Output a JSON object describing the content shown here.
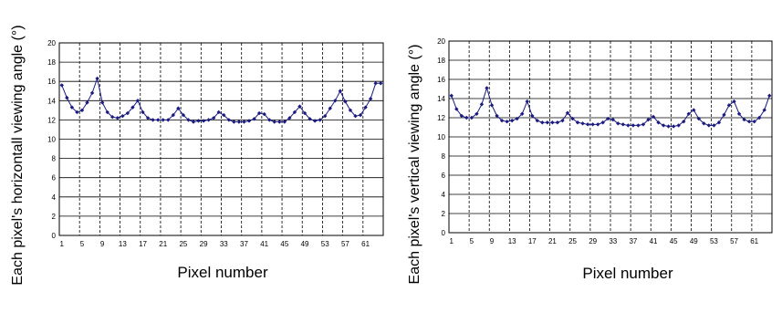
{
  "colors": {
    "series": "#1a1a80",
    "grid": "#000000",
    "background": "#ffffff"
  },
  "chart_data": [
    {
      "type": "line",
      "title": "",
      "xlabel": "Pixel number",
      "ylabel": "Each pixel's horizontall viewing angle (°)",
      "ylim": [
        0,
        20
      ],
      "xlim": [
        1,
        64
      ],
      "x_ticks": [
        "1",
        "5",
        "9",
        "13",
        "17",
        "21",
        "25",
        "29",
        "33",
        "37",
        "41",
        "45",
        "49",
        "53",
        "57",
        "61"
      ],
      "y_ticks": [
        "0",
        "2",
        "4",
        "6",
        "8",
        "10",
        "12",
        "14",
        "16",
        "18",
        "20"
      ],
      "grid": true,
      "series": [
        {
          "x": [
            1,
            2,
            3,
            4,
            5,
            6,
            7,
            8,
            9,
            10,
            11,
            12,
            13,
            14,
            15,
            16,
            17,
            18,
            19,
            20,
            21,
            22,
            23,
            24,
            25,
            26,
            27,
            28,
            29,
            30,
            31,
            32,
            33,
            34,
            35,
            36,
            37,
            38,
            39,
            40,
            41,
            42,
            43,
            44,
            45,
            46,
            47,
            48,
            49,
            50,
            51,
            52,
            53,
            54,
            55,
            56,
            57,
            58,
            59,
            60,
            61,
            62,
            63,
            64
          ],
          "values": [
            15.6,
            14.3,
            13.3,
            12.8,
            13.0,
            13.8,
            14.8,
            16.3,
            13.8,
            12.8,
            12.3,
            12.2,
            12.4,
            12.7,
            13.3,
            14.0,
            12.8,
            12.2,
            12.0,
            12.0,
            12.0,
            12.0,
            12.5,
            13.2,
            12.5,
            12.0,
            11.8,
            11.9,
            11.9,
            12.0,
            12.2,
            12.8,
            12.5,
            12.0,
            11.8,
            11.8,
            11.8,
            11.9,
            12.1,
            12.7,
            12.6,
            12.0,
            11.8,
            11.8,
            11.8,
            12.2,
            12.8,
            13.4,
            12.7,
            12.1,
            11.9,
            12.0,
            12.4,
            13.2,
            14.0,
            15.0,
            13.9,
            13.0,
            12.4,
            12.5,
            13.3,
            14.2,
            15.8,
            15.8
          ]
        }
      ]
    },
    {
      "type": "line",
      "title": "",
      "xlabel": "Pixel number",
      "ylabel": "Each pixel's vertical viewing angle (°)",
      "ylim": [
        0,
        20
      ],
      "xlim": [
        1,
        64
      ],
      "x_ticks": [
        "1",
        "5",
        "9",
        "13",
        "17",
        "21",
        "25",
        "29",
        "33",
        "37",
        "41",
        "45",
        "49",
        "53",
        "57",
        "61"
      ],
      "y_ticks": [
        "0",
        "2",
        "4",
        "6",
        "8",
        "10",
        "12",
        "14",
        "16",
        "18",
        "20"
      ],
      "grid": true,
      "series": [
        {
          "x": [
            1,
            2,
            3,
            4,
            5,
            6,
            7,
            8,
            9,
            10,
            11,
            12,
            13,
            14,
            15,
            16,
            17,
            18,
            19,
            20,
            21,
            22,
            23,
            24,
            25,
            26,
            27,
            28,
            29,
            30,
            31,
            32,
            33,
            34,
            35,
            36,
            37,
            38,
            39,
            40,
            41,
            42,
            43,
            44,
            45,
            46,
            47,
            48,
            49,
            50,
            51,
            52,
            53,
            54,
            55,
            56,
            57,
            58,
            59,
            60,
            61,
            62,
            63,
            64
          ],
          "values": [
            14.3,
            12.9,
            12.2,
            12.0,
            12.0,
            12.4,
            13.4,
            15.1,
            13.3,
            12.2,
            11.7,
            11.6,
            11.7,
            11.9,
            12.4,
            13.7,
            12.2,
            11.7,
            11.5,
            11.5,
            11.5,
            11.5,
            11.7,
            12.5,
            11.9,
            11.5,
            11.4,
            11.3,
            11.3,
            11.3,
            11.5,
            11.9,
            11.8,
            11.4,
            11.3,
            11.2,
            11.2,
            11.2,
            11.3,
            11.8,
            12.1,
            11.5,
            11.2,
            11.1,
            11.1,
            11.2,
            11.6,
            12.4,
            12.8,
            11.9,
            11.4,
            11.2,
            11.2,
            11.5,
            12.3,
            13.3,
            13.7,
            12.4,
            11.8,
            11.6,
            11.6,
            12.0,
            12.8,
            14.3
          ]
        }
      ]
    }
  ]
}
